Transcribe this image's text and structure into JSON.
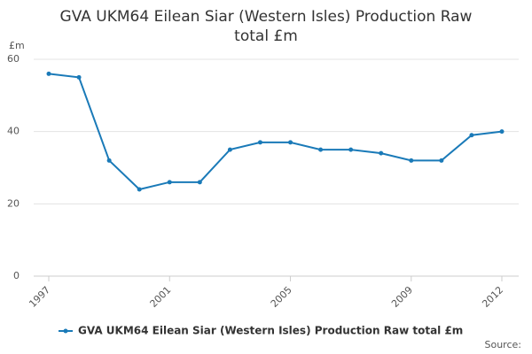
{
  "chart_data": {
    "type": "line",
    "title": "GVA UKM64 Eilean Siar (Western Isles) Production Raw total £m",
    "y_label": "£m",
    "source": "Source:",
    "x": [
      1997,
      1998,
      1999,
      2000,
      2001,
      2002,
      2003,
      2004,
      2005,
      2006,
      2007,
      2008,
      2009,
      2010,
      2011,
      2012
    ],
    "series": [
      {
        "name": "GVA UKM64 Eilean Siar (Western Isles) Production Raw total £m",
        "color": "#1a7ab8",
        "values": [
          56,
          55,
          32,
          24,
          26,
          26,
          35,
          37,
          37,
          35,
          35,
          34,
          32,
          32,
          39,
          40
        ]
      }
    ],
    "xlim": [
      1997,
      2012
    ],
    "xticks": [
      1997,
      2001,
      2005,
      2009,
      2012
    ],
    "ylim": [
      0,
      60
    ],
    "yticks": [
      0,
      20,
      40,
      60
    ],
    "grid": true
  }
}
